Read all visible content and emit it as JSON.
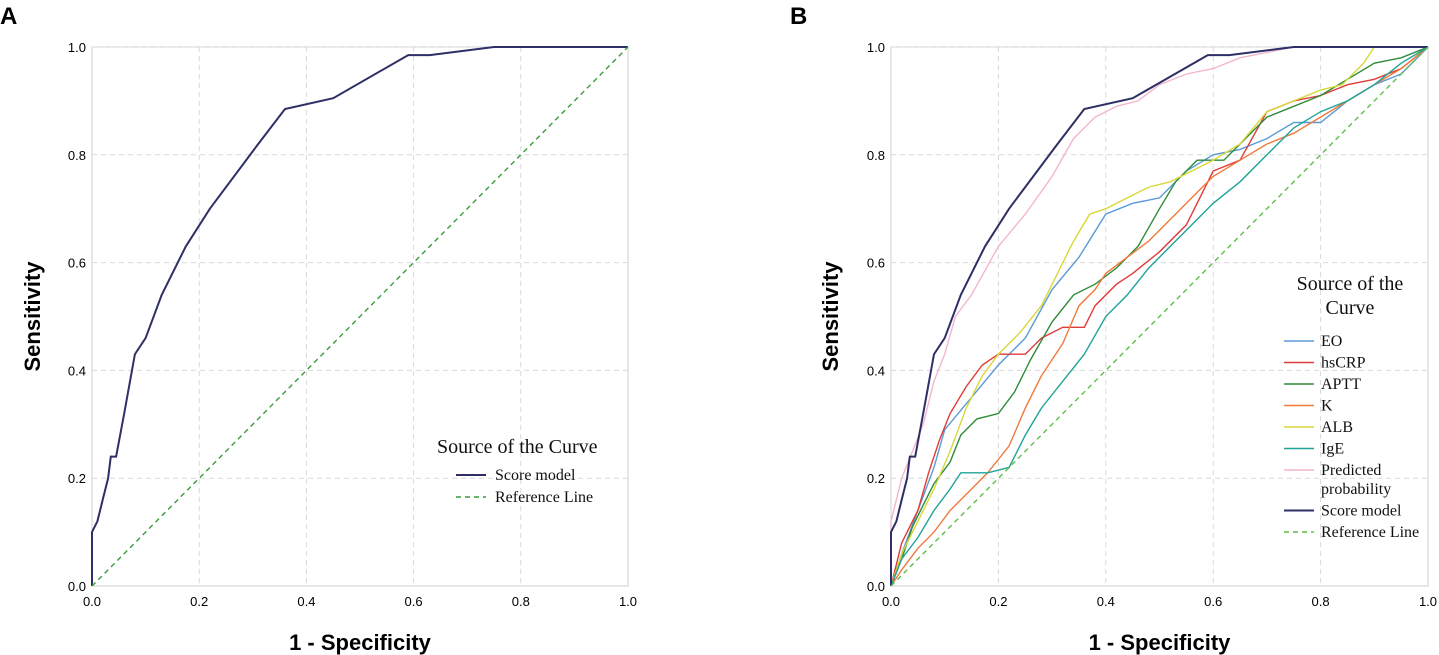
{
  "chart_data": [
    {
      "panel": "A",
      "type": "line",
      "title": "",
      "xlabel": "1 - Specificity",
      "ylabel": "Sensitivity",
      "xlim": [
        0,
        1
      ],
      "ylim": [
        0,
        1
      ],
      "xticks": [
        "0.0",
        "0.2",
        "0.4",
        "0.6",
        "0.8",
        "1.0"
      ],
      "yticks": [
        "0.0",
        "0.2",
        "0.4",
        "0.6",
        "0.8",
        "1.0"
      ],
      "grid": true,
      "legend": {
        "title": "Source of the Curve",
        "position": "bottom-right"
      },
      "series": [
        {
          "name": "Score model",
          "color": "#2e2f66",
          "dash": false,
          "points": [
            [
              0,
              0
            ],
            [
              0,
              0.1
            ],
            [
              0.01,
              0.12
            ],
            [
              0.02,
              0.16
            ],
            [
              0.03,
              0.2
            ],
            [
              0.035,
              0.24
            ],
            [
              0.045,
              0.24
            ],
            [
              0.06,
              0.32
            ],
            [
              0.08,
              0.43
            ],
            [
              0.1,
              0.46
            ],
            [
              0.13,
              0.54
            ],
            [
              0.175,
              0.63
            ],
            [
              0.22,
              0.7
            ],
            [
              0.31,
              0.82
            ],
            [
              0.36,
              0.885
            ],
            [
              0.45,
              0.905
            ],
            [
              0.59,
              0.985
            ],
            [
              0.63,
              0.985
            ],
            [
              0.75,
              1
            ],
            [
              0.9,
              1
            ],
            [
              1,
              1
            ]
          ]
        },
        {
          "name": "Reference Line",
          "color": "#3a9b3a",
          "dash": true,
          "points": [
            [
              0,
              0
            ],
            [
              1,
              1
            ]
          ]
        }
      ]
    },
    {
      "panel": "B",
      "type": "line",
      "title": "",
      "xlabel": "1 - Specificity",
      "ylabel": "Sensitivity",
      "xlim": [
        0,
        1
      ],
      "ylim": [
        0,
        1
      ],
      "xticks": [
        "0.0",
        "0.2",
        "0.4",
        "0.6",
        "0.8",
        "1.0"
      ],
      "yticks": [
        "0.0",
        "0.2",
        "0.4",
        "0.6",
        "0.8",
        "1.0"
      ],
      "grid": true,
      "legend": {
        "title": "Source of the Curve",
        "position": "right"
      },
      "series": [
        {
          "name": "EO",
          "color": "#5b9bd5",
          "dash": false,
          "points": [
            [
              0,
              0
            ],
            [
              0.02,
              0.06
            ],
            [
              0.05,
              0.14
            ],
            [
              0.08,
              0.22
            ],
            [
              0.1,
              0.29
            ],
            [
              0.15,
              0.35
            ],
            [
              0.2,
              0.41
            ],
            [
              0.25,
              0.46
            ],
            [
              0.3,
              0.55
            ],
            [
              0.35,
              0.61
            ],
            [
              0.4,
              0.69
            ],
            [
              0.45,
              0.71
            ],
            [
              0.5,
              0.72
            ],
            [
              0.55,
              0.77
            ],
            [
              0.6,
              0.8
            ],
            [
              0.65,
              0.81
            ],
            [
              0.7,
              0.83
            ],
            [
              0.75,
              0.86
            ],
            [
              0.8,
              0.86
            ],
            [
              0.85,
              0.9
            ],
            [
              0.9,
              0.93
            ],
            [
              0.95,
              0.95
            ],
            [
              1,
              1
            ]
          ]
        },
        {
          "name": "hsCRP",
          "color": "#e03b3b",
          "dash": false,
          "points": [
            [
              0,
              0
            ],
            [
              0.02,
              0.08
            ],
            [
              0.05,
              0.14
            ],
            [
              0.07,
              0.21
            ],
            [
              0.09,
              0.27
            ],
            [
              0.11,
              0.32
            ],
            [
              0.14,
              0.37
            ],
            [
              0.17,
              0.41
            ],
            [
              0.2,
              0.43
            ],
            [
              0.25,
              0.43
            ],
            [
              0.28,
              0.46
            ],
            [
              0.32,
              0.48
            ],
            [
              0.36,
              0.48
            ],
            [
              0.38,
              0.52
            ],
            [
              0.42,
              0.56
            ],
            [
              0.45,
              0.58
            ],
            [
              0.5,
              0.62
            ],
            [
              0.55,
              0.67
            ],
            [
              0.6,
              0.77
            ],
            [
              0.65,
              0.79
            ],
            [
              0.7,
              0.88
            ],
            [
              0.75,
              0.9
            ],
            [
              0.8,
              0.91
            ],
            [
              0.85,
              0.93
            ],
            [
              0.9,
              0.94
            ],
            [
              0.95,
              0.96
            ],
            [
              1,
              1
            ]
          ]
        },
        {
          "name": "APTT",
          "color": "#2e8b3a",
          "dash": false,
          "points": [
            [
              0,
              0
            ],
            [
              0.02,
              0.05
            ],
            [
              0.04,
              0.11
            ],
            [
              0.06,
              0.15
            ],
            [
              0.08,
              0.19
            ],
            [
              0.11,
              0.23
            ],
            [
              0.13,
              0.28
            ],
            [
              0.16,
              0.31
            ],
            [
              0.2,
              0.32
            ],
            [
              0.23,
              0.36
            ],
            [
              0.26,
              0.42
            ],
            [
              0.3,
              0.49
            ],
            [
              0.34,
              0.54
            ],
            [
              0.38,
              0.56
            ],
            [
              0.42,
              0.59
            ],
            [
              0.46,
              0.63
            ],
            [
              0.5,
              0.7
            ],
            [
              0.53,
              0.75
            ],
            [
              0.57,
              0.79
            ],
            [
              0.62,
              0.79
            ],
            [
              0.66,
              0.83
            ],
            [
              0.7,
              0.87
            ],
            [
              0.75,
              0.89
            ],
            [
              0.8,
              0.91
            ],
            [
              0.85,
              0.94
            ],
            [
              0.9,
              0.97
            ],
            [
              0.95,
              0.98
            ],
            [
              1,
              1
            ]
          ]
        },
        {
          "name": "K",
          "color": "#f07a3c",
          "dash": false,
          "points": [
            [
              0,
              0
            ],
            [
              0.02,
              0.03
            ],
            [
              0.05,
              0.07
            ],
            [
              0.08,
              0.1
            ],
            [
              0.11,
              0.14
            ],
            [
              0.14,
              0.17
            ],
            [
              0.18,
              0.21
            ],
            [
              0.22,
              0.26
            ],
            [
              0.25,
              0.33
            ],
            [
              0.28,
              0.39
            ],
            [
              0.32,
              0.45
            ],
            [
              0.35,
              0.52
            ],
            [
              0.38,
              0.55
            ],
            [
              0.4,
              0.58
            ],
            [
              0.44,
              0.61
            ],
            [
              0.48,
              0.64
            ],
            [
              0.52,
              0.68
            ],
            [
              0.56,
              0.72
            ],
            [
              0.6,
              0.76
            ],
            [
              0.65,
              0.79
            ],
            [
              0.7,
              0.82
            ],
            [
              0.75,
              0.84
            ],
            [
              0.8,
              0.87
            ],
            [
              0.85,
              0.9
            ],
            [
              0.9,
              0.93
            ],
            [
              0.95,
              0.96
            ],
            [
              1,
              1
            ]
          ]
        },
        {
          "name": "ALB",
          "color": "#d8d83a",
          "dash": false,
          "points": [
            [
              0,
              0
            ],
            [
              0.02,
              0.06
            ],
            [
              0.05,
              0.12
            ],
            [
              0.08,
              0.18
            ],
            [
              0.11,
              0.25
            ],
            [
              0.14,
              0.33
            ],
            [
              0.17,
              0.39
            ],
            [
              0.2,
              0.43
            ],
            [
              0.24,
              0.47
            ],
            [
              0.28,
              0.52
            ],
            [
              0.31,
              0.58
            ],
            [
              0.34,
              0.64
            ],
            [
              0.37,
              0.69
            ],
            [
              0.4,
              0.7
            ],
            [
              0.44,
              0.72
            ],
            [
              0.48,
              0.74
            ],
            [
              0.52,
              0.75
            ],
            [
              0.56,
              0.77
            ],
            [
              0.6,
              0.79
            ],
            [
              0.65,
              0.82
            ],
            [
              0.7,
              0.88
            ],
            [
              0.75,
              0.9
            ],
            [
              0.8,
              0.92
            ],
            [
              0.84,
              0.93
            ],
            [
              0.88,
              0.97
            ],
            [
              0.9,
              1
            ],
            [
              1,
              1
            ]
          ]
        },
        {
          "name": "IgE",
          "color": "#1fa398",
          "dash": false,
          "points": [
            [
              0,
              0
            ],
            [
              0.02,
              0.05
            ],
            [
              0.05,
              0.09
            ],
            [
              0.08,
              0.14
            ],
            [
              0.11,
              0.18
            ],
            [
              0.13,
              0.21
            ],
            [
              0.18,
              0.21
            ],
            [
              0.22,
              0.22
            ],
            [
              0.25,
              0.28
            ],
            [
              0.28,
              0.33
            ],
            [
              0.32,
              0.38
            ],
            [
              0.36,
              0.43
            ],
            [
              0.4,
              0.5
            ],
            [
              0.44,
              0.54
            ],
            [
              0.48,
              0.59
            ],
            [
              0.52,
              0.63
            ],
            [
              0.56,
              0.67
            ],
            [
              0.6,
              0.71
            ],
            [
              0.65,
              0.75
            ],
            [
              0.7,
              0.8
            ],
            [
              0.75,
              0.85
            ],
            [
              0.8,
              0.88
            ],
            [
              0.85,
              0.9
            ],
            [
              0.9,
              0.93
            ],
            [
              0.95,
              0.97
            ],
            [
              1,
              1
            ]
          ]
        },
        {
          "name": "Predicted probability",
          "color": "#f2b6d0",
          "dash": false,
          "points": [
            [
              0,
              0
            ],
            [
              0,
              0.12
            ],
            [
              0.02,
              0.2
            ],
            [
              0.04,
              0.25
            ],
            [
              0.06,
              0.3
            ],
            [
              0.08,
              0.38
            ],
            [
              0.1,
              0.43
            ],
            [
              0.12,
              0.5
            ],
            [
              0.15,
              0.54
            ],
            [
              0.2,
              0.63
            ],
            [
              0.25,
              0.69
            ],
            [
              0.3,
              0.76
            ],
            [
              0.34,
              0.83
            ],
            [
              0.38,
              0.87
            ],
            [
              0.42,
              0.89
            ],
            [
              0.46,
              0.9
            ],
            [
              0.5,
              0.93
            ],
            [
              0.55,
              0.95
            ],
            [
              0.6,
              0.96
            ],
            [
              0.65,
              0.98
            ],
            [
              0.7,
              0.99
            ],
            [
              0.75,
              1
            ],
            [
              1,
              1
            ]
          ]
        },
        {
          "name": "Score model",
          "color": "#2e2f66",
          "dash": false,
          "points": [
            [
              0,
              0
            ],
            [
              0,
              0.1
            ],
            [
              0.01,
              0.12
            ],
            [
              0.02,
              0.16
            ],
            [
              0.03,
              0.2
            ],
            [
              0.035,
              0.24
            ],
            [
              0.045,
              0.24
            ],
            [
              0.06,
              0.32
            ],
            [
              0.08,
              0.43
            ],
            [
              0.1,
              0.46
            ],
            [
              0.13,
              0.54
            ],
            [
              0.175,
              0.63
            ],
            [
              0.22,
              0.7
            ],
            [
              0.31,
              0.82
            ],
            [
              0.36,
              0.885
            ],
            [
              0.45,
              0.905
            ],
            [
              0.59,
              0.985
            ],
            [
              0.63,
              0.985
            ],
            [
              0.75,
              1
            ],
            [
              0.9,
              1
            ],
            [
              1,
              1
            ]
          ]
        },
        {
          "name": "Reference Line",
          "color": "#5cbf4a",
          "dash": true,
          "points": [
            [
              0,
              0
            ],
            [
              1,
              1
            ]
          ]
        }
      ]
    }
  ],
  "panels": {
    "a_letter": "A",
    "b_letter": "B"
  }
}
